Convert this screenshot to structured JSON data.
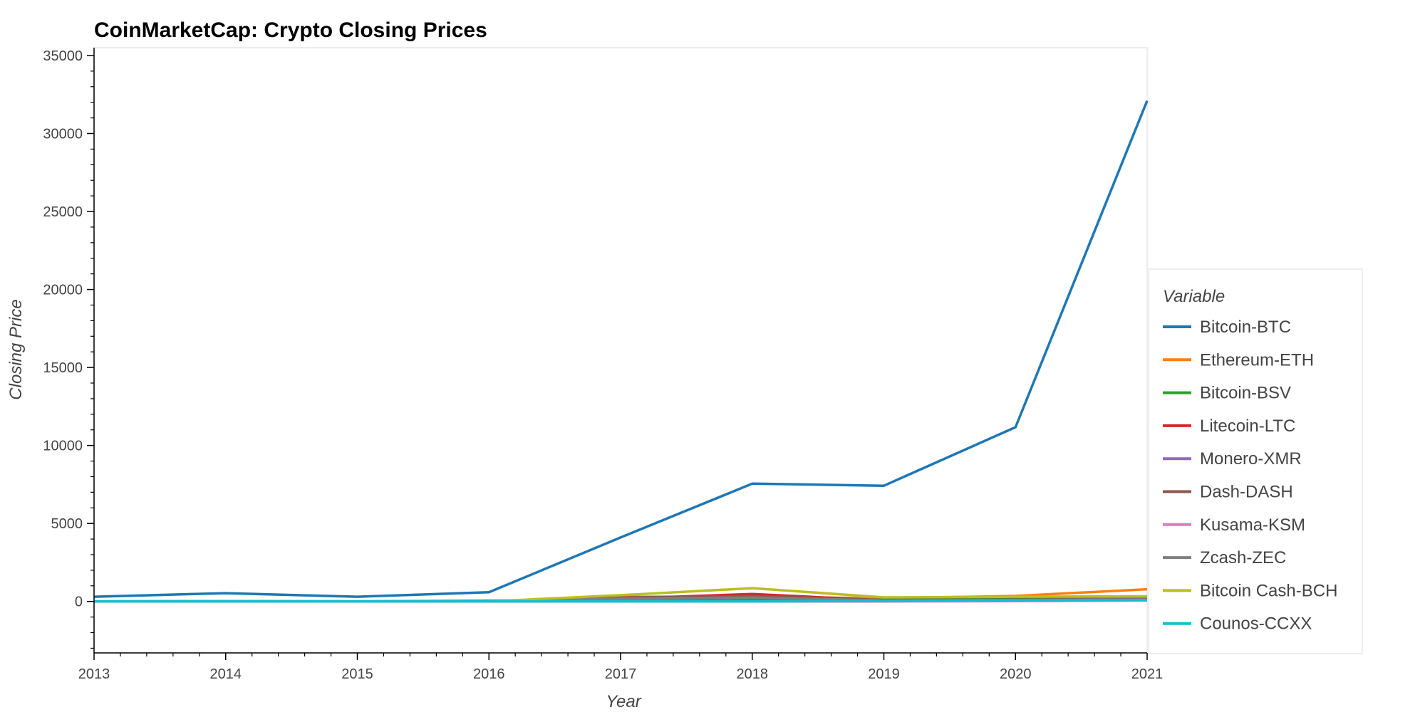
{
  "chart_data": {
    "type": "line",
    "title": "CoinMarketCap: Crypto Closing Prices",
    "xlabel": "Year",
    "ylabel": "Closing Price",
    "x": [
      2013,
      2014,
      2015,
      2016,
      2017,
      2018,
      2019,
      2020,
      2021
    ],
    "xlim": [
      2013,
      2021
    ],
    "ylim": [
      -3300,
      35500
    ],
    "x_ticks": [
      2013,
      2014,
      2015,
      2016,
      2017,
      2018,
      2019,
      2020,
      2021
    ],
    "y_ticks": [
      0,
      5000,
      10000,
      15000,
      20000,
      25000,
      30000,
      35000
    ],
    "grid": false,
    "legend_title": "Variable",
    "legend_position": "right",
    "series": [
      {
        "name": "Bitcoin-BTC",
        "color": "#1f77b4",
        "values": [
          300,
          530,
          300,
          590,
          4100,
          7550,
          7420,
          11170,
          32100
        ]
      },
      {
        "name": "Ethereum-ETH",
        "color": "#ff7f0e",
        "values": [
          0,
          0,
          1,
          10,
          300,
          300,
          200,
          350,
          780
        ]
      },
      {
        "name": "Bitcoin-BSV",
        "color": "#2ca02c",
        "values": [
          0,
          0,
          0,
          0,
          0,
          100,
          120,
          170,
          190
        ]
      },
      {
        "name": "Litecoin-LTC",
        "color": "#d62728",
        "values": [
          3,
          10,
          3,
          4,
          180,
          480,
          70,
          90,
          150
        ]
      },
      {
        "name": "Monero-XMR",
        "color": "#9467bd",
        "values": [
          0,
          5,
          1,
          2,
          100,
          280,
          70,
          100,
          170
        ]
      },
      {
        "name": "Dash-DASH",
        "color": "#8c564b",
        "values": [
          0,
          3,
          2,
          3,
          250,
          350,
          90,
          110,
          130
        ]
      },
      {
        "name": "Kusama-KSM",
        "color": "#e377c2",
        "values": [
          0,
          0,
          0,
          0,
          0,
          0,
          0,
          20,
          60
        ]
      },
      {
        "name": "Zcash-ZEC",
        "color": "#7f7f7f",
        "values": [
          0,
          0,
          0,
          50,
          180,
          250,
          60,
          90,
          120
        ]
      },
      {
        "name": "Bitcoin Cash-BCH",
        "color": "#bcbd22",
        "values": [
          0,
          0,
          0,
          0,
          400,
          850,
          260,
          300,
          330
        ]
      },
      {
        "name": "Counos-CCXX",
        "color": "#17becf",
        "values": [
          0,
          0,
          0,
          0,
          0,
          0,
          30,
          60,
          90
        ]
      }
    ]
  }
}
